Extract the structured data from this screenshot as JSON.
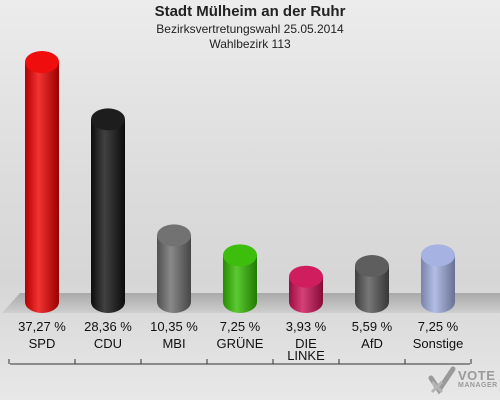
{
  "header": {
    "title": "Stadt Mülheim an der Ruhr",
    "subtitle": "Bezirksvertretungswahl 25.05.2014",
    "district": "Wahlbezirk 113"
  },
  "chart_data": {
    "type": "bar",
    "title": "Stadt Mülheim an der Ruhr",
    "subtitle": "Bezirksvertretungswahl 25.05.2014",
    "xlabel": "",
    "ylabel": "",
    "ylim": [
      0,
      40
    ],
    "grid": false,
    "categories": [
      "SPD",
      "CDU",
      "MBI",
      "GRÜNE",
      "DIE LINKE",
      "AfD",
      "Sonstige"
    ],
    "category_lines": [
      [
        "SPD"
      ],
      [
        "CDU"
      ],
      [
        "MBI"
      ],
      [
        "GRÜNE"
      ],
      [
        "DIE",
        "LINKE"
      ],
      [
        "AfD"
      ],
      [
        "Sonstige"
      ]
    ],
    "values": [
      37.27,
      28.36,
      10.35,
      7.25,
      3.93,
      5.59,
      7.25
    ],
    "value_labels": [
      "37,27 %",
      "28,36 %",
      "10,35 %",
      "7,25 %",
      "3,93 %",
      "5,59 %",
      "7,25 %"
    ],
    "colors": [
      "#ee0000",
      "#111111",
      "#6b6b6b",
      "#33bb00",
      "#cc1155",
      "#555555",
      "#a0aee0"
    ]
  },
  "logo": {
    "line1": "VOTE",
    "line2": "MANAGER",
    "icon": "checkmark-cross-icon"
  }
}
